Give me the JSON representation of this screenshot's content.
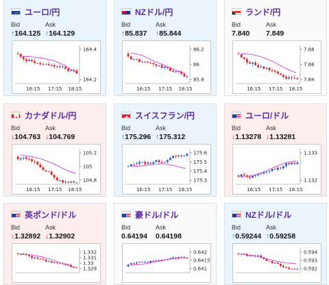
{
  "labels": {
    "bid": "Bid",
    "ask": "Ask"
  },
  "tiles": [
    {
      "pair": "ユーロ/円",
      "flag": "eu-flag",
      "bg": "blue",
      "bid_dir": "up",
      "bid": "164.125",
      "ask_dir": "up",
      "ask": "164.129",
      "yticks": [
        "164.4",
        "164.2"
      ],
      "xticks": [
        "16:15",
        "17:15",
        "18:15"
      ],
      "chart_data": {
        "type": "candlestick",
        "trend": "down",
        "ma": [
          0.72,
          0.7,
          0.66,
          0.6,
          0.48,
          0.3
        ]
      }
    },
    {
      "pair": "NZドル/円",
      "flag": "nz-flag",
      "bg": "blue",
      "bid_dir": "up",
      "bid": "85.837",
      "ask_dir": "up",
      "ask": "85.844",
      "yticks": [
        "86.2",
        "86",
        "85.8"
      ],
      "xticks": [
        "16:15",
        "17:15",
        "18:15"
      ],
      "chart_data": {
        "type": "candlestick",
        "trend": "down",
        "ma": [
          0.8,
          0.74,
          0.6,
          0.48,
          0.36,
          0.26
        ]
      }
    },
    {
      "pair": "ランド/円",
      "flag": "za-flag",
      "bg": "white",
      "bid_dir": "none",
      "bid": "7.840",
      "ask_dir": "none",
      "ask": "7.849",
      "yticks": [
        "7.88",
        "7.86",
        "7.84"
      ],
      "xticks": [
        "16:15",
        "17:15",
        "18:15"
      ],
      "chart_data": {
        "type": "candlestick",
        "trend": "down",
        "ma": [
          0.78,
          0.76,
          0.68,
          0.56,
          0.4,
          0.28
        ]
      }
    },
    {
      "pair": "カナダドル/円",
      "flag": "ca-flag",
      "bg": "red",
      "bid_dir": "down",
      "bid": "104.763",
      "ask_dir": "down",
      "ask": "104.769",
      "yticks": [
        "105.2",
        "105",
        "104.8"
      ],
      "xticks": [
        "16:15",
        "17:15",
        "18:15"
      ],
      "chart_data": {
        "type": "candlestick",
        "trend": "down",
        "ma": [
          0.82,
          0.78,
          0.7,
          0.58,
          0.42,
          0.3
        ]
      }
    },
    {
      "pair": "スイスフラン/円",
      "flag": "ch-flag",
      "bg": "blue",
      "bid_dir": "up",
      "bid": "175.296",
      "ask_dir": "up",
      "ask": "175.312",
      "yticks": [
        "175.6",
        "175.5",
        "175.4",
        "175.3"
      ],
      "xticks": [
        "16:15",
        "17:15",
        "18:15"
      ],
      "chart_data": {
        "type": "candlestick",
        "trend": "flat",
        "ma": [
          0.5,
          0.52,
          0.56,
          0.58,
          0.52,
          0.44
        ]
      }
    },
    {
      "pair": "ユーロ/ドル",
      "flag": "eu-us-flag",
      "bg": "red",
      "bid_dir": "down",
      "bid": "1.13278",
      "ask_dir": "down",
      "ask": "1.13281",
      "yticks": [
        "1.133",
        "1.132"
      ],
      "xticks": [
        "16:15",
        "17:15",
        "18:15"
      ],
      "chart_data": {
        "type": "candlestick",
        "trend": "up",
        "ma": [
          0.2,
          0.24,
          0.34,
          0.48,
          0.6,
          0.66
        ]
      }
    },
    {
      "pair": "英ポンド/ドル",
      "flag": "gb-us-flag",
      "bg": "red",
      "bid_dir": "down",
      "bid": "1.32892",
      "ask_dir": "down",
      "ask": "1.32902",
      "yticks": [
        "1.332",
        "1.331",
        "1.33",
        "1.329"
      ],
      "xticks": [],
      "chart_data": {
        "type": "candlestick",
        "trend": "down",
        "ma": [
          0.74,
          0.72,
          0.64,
          0.5,
          0.34,
          0.22
        ]
      }
    },
    {
      "pair": "豪ドル/ドル",
      "flag": "au-us-flag",
      "bg": "white",
      "bid_dir": "none",
      "bid": "0.64194",
      "ask_dir": "none",
      "ask": "0.64198",
      "yticks": [
        "0.642",
        "0.6415",
        "0.641"
      ],
      "xticks": [],
      "chart_data": {
        "type": "candlestick",
        "trend": "up",
        "ma": [
          0.3,
          0.34,
          0.42,
          0.5,
          0.58,
          0.62
        ]
      }
    },
    {
      "pair": "NZドル/ドル",
      "flag": "nz-us-flag",
      "bg": "blue",
      "bid_dir": "up",
      "bid": "0.59244",
      "ask_dir": "up",
      "ask": "0.59258",
      "yticks": [
        "0.594",
        "0.593",
        "0.592"
      ],
      "xticks": [],
      "chart_data": {
        "type": "candlestick",
        "trend": "down",
        "ma": [
          0.76,
          0.7,
          0.6,
          0.48,
          0.4,
          0.36
        ]
      }
    }
  ],
  "colors": {
    "candle_up": "#1d5fd0",
    "candle_down": "#e0242a",
    "ma_line": "#d23bd2",
    "arrow_up": "#1f6fd6",
    "arrow_down": "#d81f1f"
  }
}
